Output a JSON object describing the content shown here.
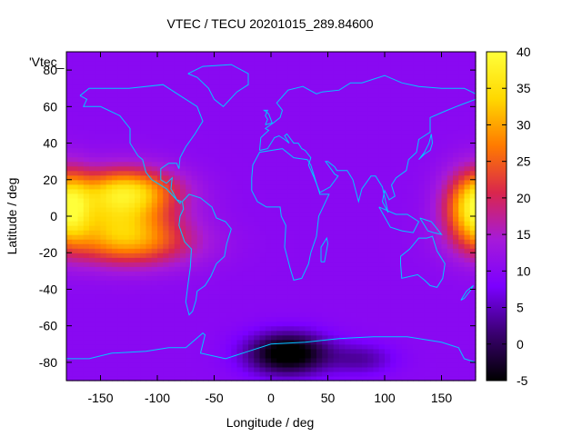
{
  "chart_data": {
    "type": "heatmap",
    "title": "VTEC / TECU 20201015_289.84600",
    "xlabel": "Longitude / deg",
    "ylabel": "Latitude / deg",
    "xlim": [
      -180,
      180
    ],
    "ylim": [
      -90,
      90
    ],
    "x_ticks": [
      -150,
      -100,
      -50,
      0,
      50,
      100,
      150
    ],
    "y_ticks": [
      -80,
      -60,
      -40,
      -20,
      0,
      20,
      40,
      60,
      80
    ],
    "colorbar": {
      "range": [
        -5,
        40
      ],
      "ticks": [
        -5,
        0,
        5,
        10,
        15,
        20,
        25,
        30,
        35,
        40
      ],
      "colormap": [
        "#000000",
        "#3a0070",
        "#7b00ff",
        "#a61ad9",
        "#d9264d",
        "#ff7a00",
        "#ffd800",
        "#ffff3a"
      ]
    },
    "legend": {
      "entry": "'Vtec_",
      "position": "top-left"
    },
    "background_value": 10,
    "features": [
      {
        "name": "tropical-crest-east-pacific",
        "lon": -135,
        "lat": 2,
        "value": 30,
        "sigma_lon": 35,
        "sigma_lat": 14
      },
      {
        "name": "crest-north",
        "lon": -125,
        "lat": 15,
        "value": 24,
        "sigma_lon": 30,
        "sigma_lat": 8
      },
      {
        "name": "crest-south",
        "lon": -120,
        "lat": -15,
        "value": 22,
        "sigma_lon": 40,
        "sigma_lat": 9
      },
      {
        "name": "crest-far-west",
        "lon": -175,
        "lat": 5,
        "value": 22,
        "sigma_lon": 12,
        "sigma_lat": 14
      },
      {
        "name": "western-pacific",
        "lon": 170,
        "lat": 5,
        "value": 23,
        "sigma_lon": 15,
        "sigma_lat": 14
      },
      {
        "name": "south-atlantic-low",
        "lon": 15,
        "lat": -75,
        "value": -8,
        "sigma_lon": 25,
        "sigma_lat": 8
      },
      {
        "name": "polar-high",
        "lon": 80,
        "lat": -78,
        "value": 4,
        "sigma_lon": 20,
        "sigma_lat": 6
      }
    ],
    "coastline_color": "#00c8ff"
  }
}
